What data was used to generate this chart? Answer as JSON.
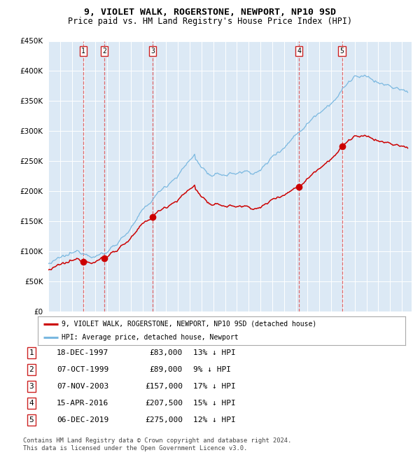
{
  "title": "9, VIOLET WALK, ROGERSTONE, NEWPORT, NP10 9SD",
  "subtitle": "Price paid vs. HM Land Registry's House Price Index (HPI)",
  "ytick_values": [
    0,
    50000,
    100000,
    150000,
    200000,
    250000,
    300000,
    350000,
    400000,
    450000
  ],
  "ylim": [
    0,
    450000
  ],
  "xlim_start": 1995.0,
  "xlim_end": 2025.83,
  "bg_color": "#dce9f5",
  "hpi_color": "#7ab8e0",
  "price_color": "#cc0000",
  "dashed_line_color": "#e05050",
  "sale_dates_decimal": [
    1997.96,
    1999.77,
    2003.85,
    2016.29,
    2019.92
  ],
  "sale_labels": [
    "1",
    "2",
    "3",
    "4",
    "5"
  ],
  "sale_prices": [
    83000,
    89000,
    157000,
    207500,
    275000
  ],
  "table_rows": [
    [
      "1",
      "18-DEC-1997",
      "£83,000",
      "13% ↓ HPI"
    ],
    [
      "2",
      "07-OCT-1999",
      "£89,000",
      "9% ↓ HPI"
    ],
    [
      "3",
      "07-NOV-2003",
      "£157,000",
      "17% ↓ HPI"
    ],
    [
      "4",
      "15-APR-2016",
      "£207,500",
      "15% ↓ HPI"
    ],
    [
      "5",
      "06-DEC-2019",
      "£275,000",
      "12% ↓ HPI"
    ]
  ],
  "legend_label_price": "9, VIOLET WALK, ROGERSTONE, NEWPORT, NP10 9SD (detached house)",
  "legend_label_hpi": "HPI: Average price, detached house, Newport",
  "footnote": "Contains HM Land Registry data © Crown copyright and database right 2024.\nThis data is licensed under the Open Government Licence v3.0."
}
